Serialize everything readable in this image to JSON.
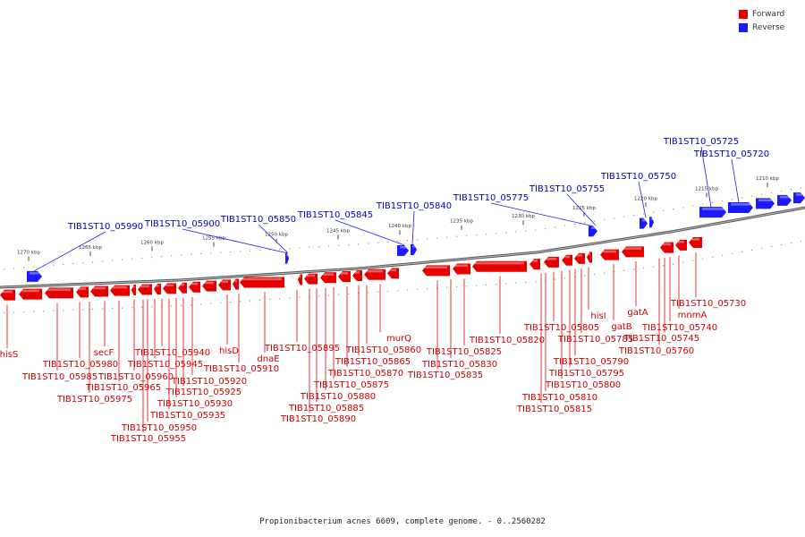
{
  "legend": {
    "forward_label": "Forward",
    "reverse_label": "Reverse",
    "forward_color": "#e60000",
    "reverse_color": "#1a1aff"
  },
  "footer": {
    "caption": "Propionibacterium acnes 6609, complete genome. - 0..2560282"
  },
  "colors": {
    "forward": "#e60000",
    "reverse": "#1a1aff",
    "forward_label": "#cc0000",
    "reverse_label": "#0000bb",
    "axis": "#808080"
  },
  "scale": {
    "tick_labels": [
      "1270 kbp",
      "1265 kbp",
      "1260 kbp",
      "1255 kbp",
      "1250 kbp",
      "1245 kbp",
      "1240 kbp",
      "1235 kbp",
      "1230 kbp",
      "1225 kbp",
      "1220 kbp",
      "1215 kbp",
      "1210 kbp"
    ]
  },
  "reverse_genes": [
    "TIB1ST10_05990",
    "TIB1ST10_05900",
    "TIB1ST10_05850",
    "TIB1ST10_05845",
    "TIB1ST10_05840",
    "TIB1ST10_05775",
    "TIB1ST10_05755",
    "TIB1ST10_05750",
    "TIB1ST10_05725",
    "TIB1ST10_05720"
  ],
  "forward_genes": [
    "hisS",
    "TIB1ST10_05985",
    "TIB1ST10_05980",
    "TIB1ST10_05975",
    "secF",
    "TIB1ST10_05965",
    "TIB1ST10_05960",
    "TIB1ST10_05955",
    "TIB1ST10_05950",
    "TIB1ST10_05945",
    "TIB1ST10_05940",
    "TIB1ST10_05935",
    "TIB1ST10_05930",
    "TIB1ST10_05925",
    "TIB1ST10_05920",
    "hisD",
    "TIB1ST10_05910",
    "dnaE",
    "TIB1ST10_05895",
    "TIB1ST10_05890",
    "TIB1ST10_05885",
    "TIB1ST10_05880",
    "TIB1ST10_05875",
    "TIB1ST10_05870",
    "TIB1ST10_05865",
    "TIB1ST10_05860",
    "murQ",
    "TIB1ST10_05835",
    "TIB1ST10_05830",
    "TIB1ST10_05825",
    "TIB1ST10_05820",
    "TIB1ST10_05815",
    "TIB1ST10_05810",
    "TIB1ST10_05805",
    "TIB1ST10_05800",
    "TIB1ST10_05795",
    "TIB1ST10_05790",
    "TIB1ST10_05785",
    "hisI",
    "gatB",
    "gatA",
    "TIB1ST10_05760",
    "TIB1ST10_05745",
    "TIB1ST10_05740",
    "mnmA",
    "TIB1ST10_05730"
  ]
}
